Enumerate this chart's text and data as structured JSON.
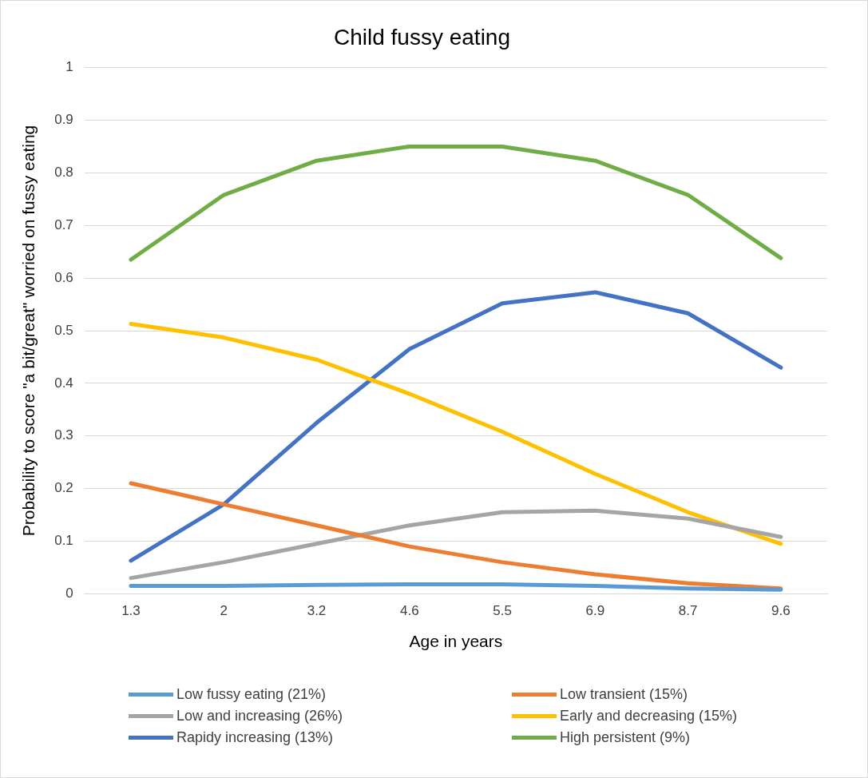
{
  "chart_data": {
    "type": "line",
    "title": "Child fussy eating",
    "xlabel": "Age in years",
    "ylabel": "Probability to score \"a bit/great\" worried on fussy eating",
    "categories": [
      "1.3",
      "2",
      "3.2",
      "4.6",
      "5.5",
      "6.9",
      "8.7",
      "9.6"
    ],
    "ylim": [
      0,
      1
    ],
    "yticks": [
      0,
      0.1,
      0.2,
      0.3,
      0.4,
      0.5,
      0.6,
      0.7,
      0.8,
      0.9,
      1
    ],
    "grid": "y",
    "legend": "bottom",
    "marker": "none",
    "line_style": "solid",
    "series": [
      {
        "name": "Low fussy eating (21%)",
        "color": "#5b9bd5",
        "values": [
          0.015,
          0.015,
          0.017,
          0.018,
          0.018,
          0.015,
          0.01,
          0.008
        ]
      },
      {
        "name": "Low transient (15%)",
        "color": "#ed7d31",
        "values": [
          0.21,
          0.17,
          0.13,
          0.09,
          0.06,
          0.037,
          0.02,
          0.01
        ]
      },
      {
        "name": "Low and increasing (26%)",
        "color": "#a5a5a5",
        "values": [
          0.03,
          0.06,
          0.095,
          0.13,
          0.155,
          0.158,
          0.143,
          0.108
        ]
      },
      {
        "name": "Early and decreasing (15%)",
        "color": "#ffc000",
        "values": [
          0.513,
          0.487,
          0.445,
          0.38,
          0.308,
          0.228,
          0.155,
          0.095
        ]
      },
      {
        "name": "Rapidy increasing (13%)",
        "color": "#4472c4",
        "values": [
          0.063,
          0.17,
          0.325,
          0.465,
          0.552,
          0.573,
          0.533,
          0.43
        ]
      },
      {
        "name": "High persistent (9%)",
        "color": "#70ad47",
        "values": [
          0.635,
          0.758,
          0.823,
          0.85,
          0.85,
          0.823,
          0.758,
          0.638
        ]
      }
    ]
  }
}
